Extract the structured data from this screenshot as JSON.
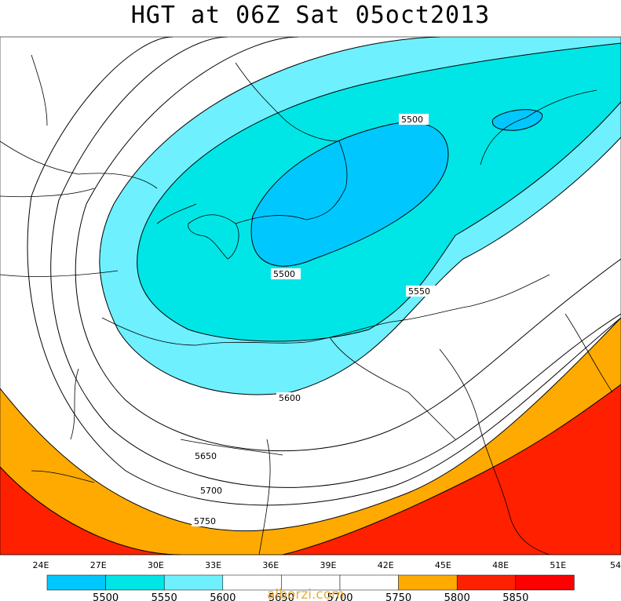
{
  "title": "HGT at 06Z Sat 05oct2013",
  "watermark": "alborzi.com",
  "lon_ticks": [
    "24E",
    "27E",
    "30E",
    "33E",
    "36E",
    "39E",
    "42E",
    "45E",
    "48E",
    "51E",
    "54"
  ],
  "legend": {
    "boxes": [
      {
        "color": "#00c8ff"
      },
      {
        "color": "#00e6e6"
      },
      {
        "color": "#6ef0ff"
      },
      {
        "color": "#ffffff"
      },
      {
        "color": "#ffffff"
      },
      {
        "color": "#ffffff"
      },
      {
        "color": "#ffaa00"
      },
      {
        "color": "#ff2000"
      },
      {
        "color": "#ff0000"
      }
    ],
    "labels": [
      "5500",
      "5550",
      "5600",
      "5650",
      "5700",
      "5750",
      "5800",
      "5850"
    ]
  },
  "contour_labels": [
    "5500",
    "5500",
    "5550",
    "5600",
    "5650",
    "5700",
    "5750"
  ],
  "colors": {
    "h5500": "#00c8ff",
    "h5550": "#00e6e6",
    "h5600": "#6ef0ff",
    "h5800": "#ffaa00",
    "h5850": "#ff2000"
  }
}
